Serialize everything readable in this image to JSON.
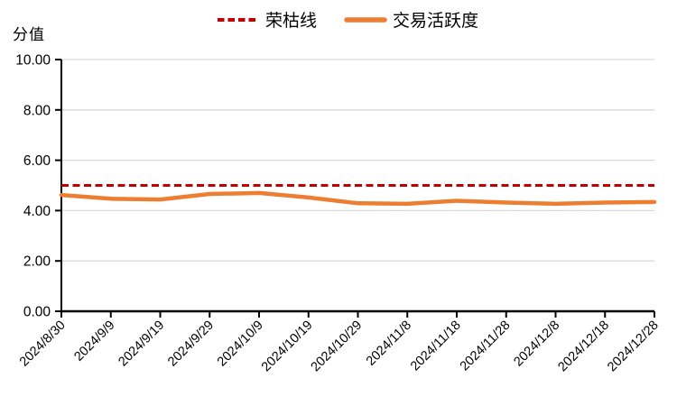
{
  "chart": {
    "y_axis_title": "分值",
    "legend": [
      {
        "label": "荣枯线",
        "color": "#C00000",
        "style": "dashed"
      },
      {
        "label": "交易活跃度",
        "color": "#ED7D31",
        "style": "solid"
      }
    ]
  },
  "chart_data": {
    "type": "line",
    "title": "",
    "xlabel": "",
    "ylabel": "分值",
    "categories": [
      "2024/8/30",
      "2024/9/9",
      "2024/9/19",
      "2024/9/29",
      "2024/10/9",
      "2024/10/19",
      "2024/10/29",
      "2024/11/8",
      "2024/11/18",
      "2024/11/28",
      "2024/12/8",
      "2024/12/18",
      "2024/12/28"
    ],
    "series": [
      {
        "name": "荣枯线",
        "values": [
          5.0,
          5.0,
          5.0,
          5.0,
          5.0,
          5.0,
          5.0,
          5.0,
          5.0,
          5.0,
          5.0,
          5.0,
          5.0
        ],
        "color": "#C00000",
        "dashed": true,
        "width": 3
      },
      {
        "name": "交易活跃度",
        "values": [
          4.62,
          4.47,
          4.44,
          4.66,
          4.7,
          4.52,
          4.29,
          4.27,
          4.39,
          4.32,
          4.27,
          4.32,
          4.34
        ],
        "color": "#ED7D31",
        "dashed": false,
        "width": 4.5
      }
    ],
    "ylim": [
      0,
      10
    ],
    "ytick_step": 2,
    "ytick_labels": [
      "0.00",
      "2.00",
      "4.00",
      "6.00",
      "8.00",
      "10.00"
    ],
    "grid": true,
    "gridline_color": "#D9D9D9",
    "axis_color": "#000000",
    "legend_position": "top"
  }
}
